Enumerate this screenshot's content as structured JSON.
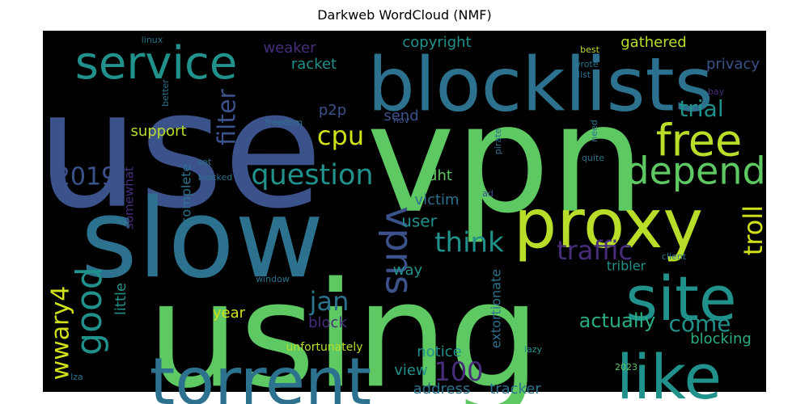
{
  "title": "Darkweb WordCloud (NMF)",
  "colors": {
    "background": "#000000",
    "purple": "#472d7b",
    "indigo": "#3b528b",
    "blue": "#2c728e",
    "teal": "#21918c",
    "aqua": "#28ae80",
    "green": "#5ec962",
    "yellow": "#b8de29",
    "bright_yellow": "#d0e11c"
  },
  "chart_data": {
    "type": "wordcloud",
    "title": "Darkweb WordCloud (NMF)",
    "words": [
      {
        "text": "vpn",
        "weight": 1.0,
        "color": "green"
      },
      {
        "text": "use",
        "weight": 0.95,
        "color": "indigo"
      },
      {
        "text": "using",
        "weight": 0.92,
        "color": "green"
      },
      {
        "text": "slow",
        "weight": 0.82,
        "color": "blue"
      },
      {
        "text": "blocklists",
        "weight": 0.55,
        "color": "blue"
      },
      {
        "text": "proxy",
        "weight": 0.52,
        "color": "yellow"
      },
      {
        "text": "torrent",
        "weight": 0.48,
        "color": "blue"
      },
      {
        "text": "site",
        "weight": 0.45,
        "color": "teal"
      },
      {
        "text": "like",
        "weight": 0.45,
        "color": "teal"
      },
      {
        "text": "service",
        "weight": 0.35,
        "color": "teal"
      },
      {
        "text": "free",
        "weight": 0.33,
        "color": "yellow"
      },
      {
        "text": "depend",
        "weight": 0.28,
        "color": "green"
      },
      {
        "text": "vpns",
        "weight": 0.28,
        "color": "indigo"
      },
      {
        "text": "good",
        "weight": 0.26,
        "color": "teal"
      },
      {
        "text": "question",
        "weight": 0.22,
        "color": "teal"
      },
      {
        "text": "filter",
        "weight": 0.2,
        "color": "indigo"
      },
      {
        "text": "think",
        "weight": 0.2,
        "color": "teal"
      },
      {
        "text": "traffic",
        "weight": 0.2,
        "color": "purple"
      },
      {
        "text": "troll",
        "weight": 0.2,
        "color": "bright_yellow"
      },
      {
        "text": "2019",
        "weight": 0.18,
        "color": "indigo"
      },
      {
        "text": "cpu",
        "weight": 0.18,
        "color": "bright_yellow"
      },
      {
        "text": "trial",
        "weight": 0.17,
        "color": "teal"
      },
      {
        "text": "jan",
        "weight": 0.18,
        "color": "blue"
      },
      {
        "text": "100",
        "weight": 0.18,
        "color": "purple"
      },
      {
        "text": "wwary4",
        "weight": 0.16,
        "color": "bright_yellow"
      },
      {
        "text": "come",
        "weight": 0.15,
        "color": "teal"
      },
      {
        "text": "actually",
        "weight": 0.12,
        "color": "aqua"
      },
      {
        "text": "user",
        "weight": 0.11,
        "color": "teal"
      },
      {
        "text": "gathered",
        "weight": 0.1,
        "color": "yellow"
      },
      {
        "text": "copyright",
        "weight": 0.1,
        "color": "teal"
      },
      {
        "text": "privacy",
        "weight": 0.1,
        "color": "indigo"
      },
      {
        "text": "weaker",
        "weight": 0.09,
        "color": "purple"
      },
      {
        "text": "racket",
        "weight": 0.09,
        "color": "teal"
      },
      {
        "text": "p2p",
        "weight": 0.09,
        "color": "indigo"
      },
      {
        "text": "send",
        "weight": 0.09,
        "color": "indigo"
      },
      {
        "text": "support",
        "weight": 0.09,
        "color": "yellow"
      },
      {
        "text": "victim",
        "weight": 0.09,
        "color": "blue"
      },
      {
        "text": "dht",
        "weight": 0.09,
        "color": "green"
      },
      {
        "text": "way",
        "weight": 0.08,
        "color": "teal"
      },
      {
        "text": "little",
        "weight": 0.08,
        "color": "teal"
      },
      {
        "text": "year",
        "weight": 0.08,
        "color": "bright_yellow"
      },
      {
        "text": "block",
        "weight": 0.08,
        "color": "purple"
      },
      {
        "text": "notice",
        "weight": 0.08,
        "color": "teal"
      },
      {
        "text": "view",
        "weight": 0.08,
        "color": "teal"
      },
      {
        "text": "address",
        "weight": 0.08,
        "color": "blue"
      },
      {
        "text": "tracker",
        "weight": 0.08,
        "color": "blue"
      },
      {
        "text": "blocking",
        "weight": 0.08,
        "color": "aqua"
      },
      {
        "text": "tribler",
        "weight": 0.07,
        "color": "teal"
      },
      {
        "text": "extortionate",
        "weight": 0.07,
        "color": "blue"
      },
      {
        "text": "complete",
        "weight": 0.07,
        "color": "blue"
      },
      {
        "text": "somewhat",
        "weight": 0.06,
        "color": "purple"
      },
      {
        "text": "unfortunately",
        "weight": 0.06,
        "color": "yellow"
      },
      {
        "text": "linux",
        "weight": 0.05,
        "color": "blue"
      },
      {
        "text": "best",
        "weight": 0.05,
        "color": "yellow"
      },
      {
        "text": "wrote",
        "weight": 0.05,
        "color": "blue"
      },
      {
        "text": "list",
        "weight": 0.05,
        "color": "blue"
      },
      {
        "text": "bay",
        "weight": 0.05,
        "color": "purple"
      },
      {
        "text": "better",
        "weight": 0.05,
        "color": "blue"
      },
      {
        "text": "freedom",
        "weight": 0.05,
        "color": "blue"
      },
      {
        "text": "nov",
        "weight": 0.05,
        "color": "indigo"
      },
      {
        "text": "need",
        "weight": 0.05,
        "color": "blue"
      },
      {
        "text": "pirate",
        "weight": 0.05,
        "color": "blue"
      },
      {
        "text": "quite",
        "weight": 0.05,
        "color": "blue"
      },
      {
        "text": "set",
        "weight": 0.04,
        "color": "blue"
      },
      {
        "text": "blocked",
        "weight": 0.05,
        "color": "blue"
      },
      {
        "text": "ad",
        "weight": 0.05,
        "color": "indigo"
      },
      {
        "text": "client",
        "weight": 0.05,
        "color": "blue"
      },
      {
        "text": "window",
        "weight": 0.05,
        "color": "blue"
      },
      {
        "text": "lazy",
        "weight": 0.05,
        "color": "teal"
      },
      {
        "text": "2023",
        "weight": 0.05,
        "color": "green"
      },
      {
        "text": "lza",
        "weight": 0.05,
        "color": "blue"
      }
    ]
  }
}
